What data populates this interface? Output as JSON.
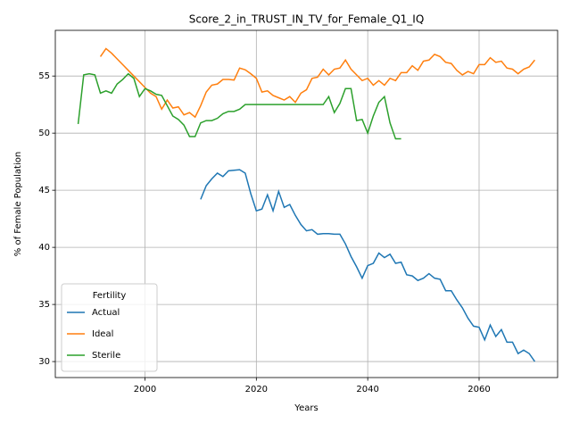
{
  "chart_data": {
    "type": "line",
    "title": "Score_2_in_TRUST_IN_TV_for_Female_Q1_IQ",
    "x_label": "Years",
    "y_label": "% of Female Population",
    "x": [
      1988,
      1989,
      1990,
      1991,
      1992,
      1993,
      1994,
      1995,
      1996,
      1997,
      1998,
      1999,
      2000,
      2001,
      2002,
      2003,
      2004,
      2005,
      2006,
      2007,
      2008,
      2009,
      2010,
      2011,
      2012,
      2013,
      2014,
      2015,
      2016,
      2017,
      2018,
      2019,
      2020,
      2021,
      2022,
      2023,
      2024,
      2025,
      2026,
      2027,
      2028,
      2029,
      2030,
      2031,
      2032,
      2033,
      2034,
      2035,
      2036,
      2037,
      2038,
      2039,
      2040,
      2041,
      2042,
      2043,
      2044,
      2045,
      2046,
      2047,
      2048,
      2049,
      2050,
      2051,
      2052,
      2053,
      2054,
      2055,
      2056,
      2057,
      2058,
      2059,
      2060,
      2061,
      2062,
      2063,
      2064,
      2065,
      2066,
      2067,
      2068,
      2069,
      2070
    ],
    "series": [
      {
        "name": "Actual",
        "color": "#1f77b4",
        "values": [
          null,
          null,
          null,
          null,
          null,
          null,
          null,
          null,
          null,
          null,
          null,
          null,
          null,
          null,
          null,
          null,
          null,
          null,
          null,
          null,
          null,
          null,
          44.2,
          45.4,
          46.0,
          46.5,
          46.2,
          46.7,
          46.75,
          46.8,
          46.5,
          44.7,
          43.2,
          43.35,
          44.6,
          43.2,
          44.9,
          43.5,
          43.75,
          42.8,
          42.0,
          41.45,
          41.55,
          41.15,
          41.2,
          41.2,
          41.15,
          41.15,
          40.3,
          39.2,
          38.3,
          37.3,
          38.4,
          38.6,
          39.5,
          39.1,
          39.4,
          38.6,
          38.7,
          37.6,
          37.5,
          37.1,
          37.3,
          37.7,
          37.3,
          37.2,
          36.2,
          36.2,
          35.4,
          34.7,
          33.8,
          33.1,
          33.0,
          31.9,
          33.2,
          32.2,
          32.8,
          31.7,
          31.7,
          30.7,
          31.0,
          30.7,
          30.0
        ]
      },
      {
        "name": "Ideal",
        "color": "#ff7f0e",
        "values": [
          null,
          null,
          null,
          null,
          56.7,
          57.4,
          57.0,
          56.5,
          56.0,
          55.5,
          55.0,
          54.5,
          54.0,
          53.5,
          53.2,
          52.1,
          52.9,
          52.2,
          52.3,
          51.6,
          51.8,
          51.4,
          52.4,
          53.6,
          54.2,
          54.3,
          54.7,
          54.7,
          54.65,
          55.7,
          55.55,
          55.2,
          54.8,
          53.6,
          53.7,
          53.3,
          53.1,
          52.9,
          53.2,
          52.7,
          53.5,
          53.8,
          54.8,
          54.9,
          55.6,
          55.1,
          55.6,
          55.7,
          56.4,
          55.6,
          55.1,
          54.6,
          54.8,
          54.2,
          54.6,
          54.2,
          54.8,
          54.6,
          55.3,
          55.3,
          55.9,
          55.5,
          56.3,
          56.4,
          56.9,
          56.7,
          56.2,
          56.1,
          55.5,
          55.1,
          55.4,
          55.2,
          56.0,
          56.0,
          56.6,
          56.2,
          56.3,
          55.7,
          55.6,
          55.2,
          55.6,
          55.8,
          56.4
        ]
      },
      {
        "name": "Sterile",
        "color": "#2ca02c",
        "values": [
          50.8,
          55.1,
          55.2,
          55.1,
          53.5,
          53.7,
          53.5,
          54.3,
          54.7,
          55.2,
          54.8,
          53.2,
          53.9,
          53.7,
          53.4,
          53.3,
          52.4,
          51.5,
          51.2,
          50.7,
          49.7,
          49.7,
          50.9,
          51.1,
          51.1,
          51.3,
          51.7,
          51.9,
          51.9,
          52.1,
          52.5,
          52.5,
          52.5,
          52.5,
          52.5,
          52.5,
          52.5,
          52.5,
          52.5,
          52.5,
          52.5,
          52.5,
          52.5,
          52.5,
          52.5,
          53.2,
          51.8,
          52.6,
          53.9,
          53.9,
          51.1,
          51.2,
          50.0,
          51.5,
          52.7,
          53.2,
          50.9,
          49.5,
          49.5,
          null,
          null,
          null,
          null,
          null,
          null,
          null,
          null,
          null,
          null,
          null,
          null,
          null,
          null,
          null,
          null,
          null,
          null,
          null,
          null,
          null,
          null,
          null,
          null
        ]
      }
    ],
    "xlim": [
      1983.9,
      2074.1
    ],
    "ylim": [
      28.6,
      59.0
    ],
    "xticks": [
      2000,
      2020,
      2040,
      2060
    ],
    "yticks": [
      30,
      35,
      40,
      45,
      50,
      55
    ],
    "grid": true,
    "legend_title": "Fertility",
    "legend_position": "lower left"
  }
}
